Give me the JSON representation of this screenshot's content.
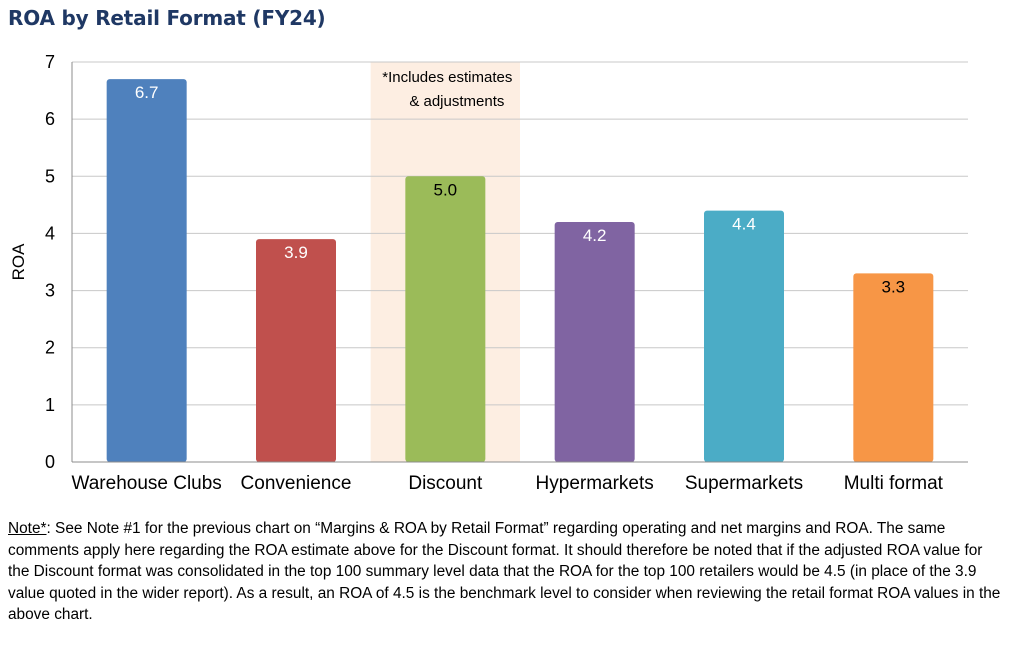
{
  "chart_data": {
    "type": "bar",
    "title": "ROA by Retail Format (FY24)",
    "ylabel": "ROA",
    "xlabel": "",
    "ylim": [
      0,
      7
    ],
    "yticks": [
      0,
      1,
      2,
      3,
      4,
      5,
      6,
      7
    ],
    "grid": true,
    "categories": [
      "Warehouse Clubs",
      "Convenience",
      "Discount",
      "Hypermarkets",
      "Supermarkets",
      "Multi format"
    ],
    "values": [
      6.7,
      3.9,
      5.0,
      4.2,
      4.4,
      3.3
    ],
    "data_labels": [
      "6.7",
      "3.9",
      "5.0",
      "4.2",
      "4.4",
      "3.3"
    ],
    "colors": [
      "#4f81bd",
      "#c0504d",
      "#9bbb59",
      "#8064a2",
      "#4bacc6",
      "#f79646"
    ],
    "label_colors": [
      "#ffffff",
      "#ffffff",
      "#000000",
      "#ffffff",
      "#ffffff",
      "#000000"
    ],
    "highlight": {
      "category": "Discount",
      "color": "#fdeee2",
      "annotation_lines": [
        "*Includes estimates",
        "& adjustments"
      ]
    }
  },
  "note": {
    "heading": "Note*",
    "text": ": See Note #1 for the previous chart on “Margins & ROA by Retail Format” regarding operating and net margins and ROA. The same comments apply here regarding the ROA estimate above for the Discount format. It should therefore be noted that if the adjusted ROA value for the Discount format was consolidated in the top 100 summary level data that the ROA for the top 100 retailers would be 4.5 (in place of the 3.9 value quoted in the wider report). As a result, an ROA of 4.5 is the benchmark level to consider when reviewing the retail format ROA values in the above chart."
  }
}
